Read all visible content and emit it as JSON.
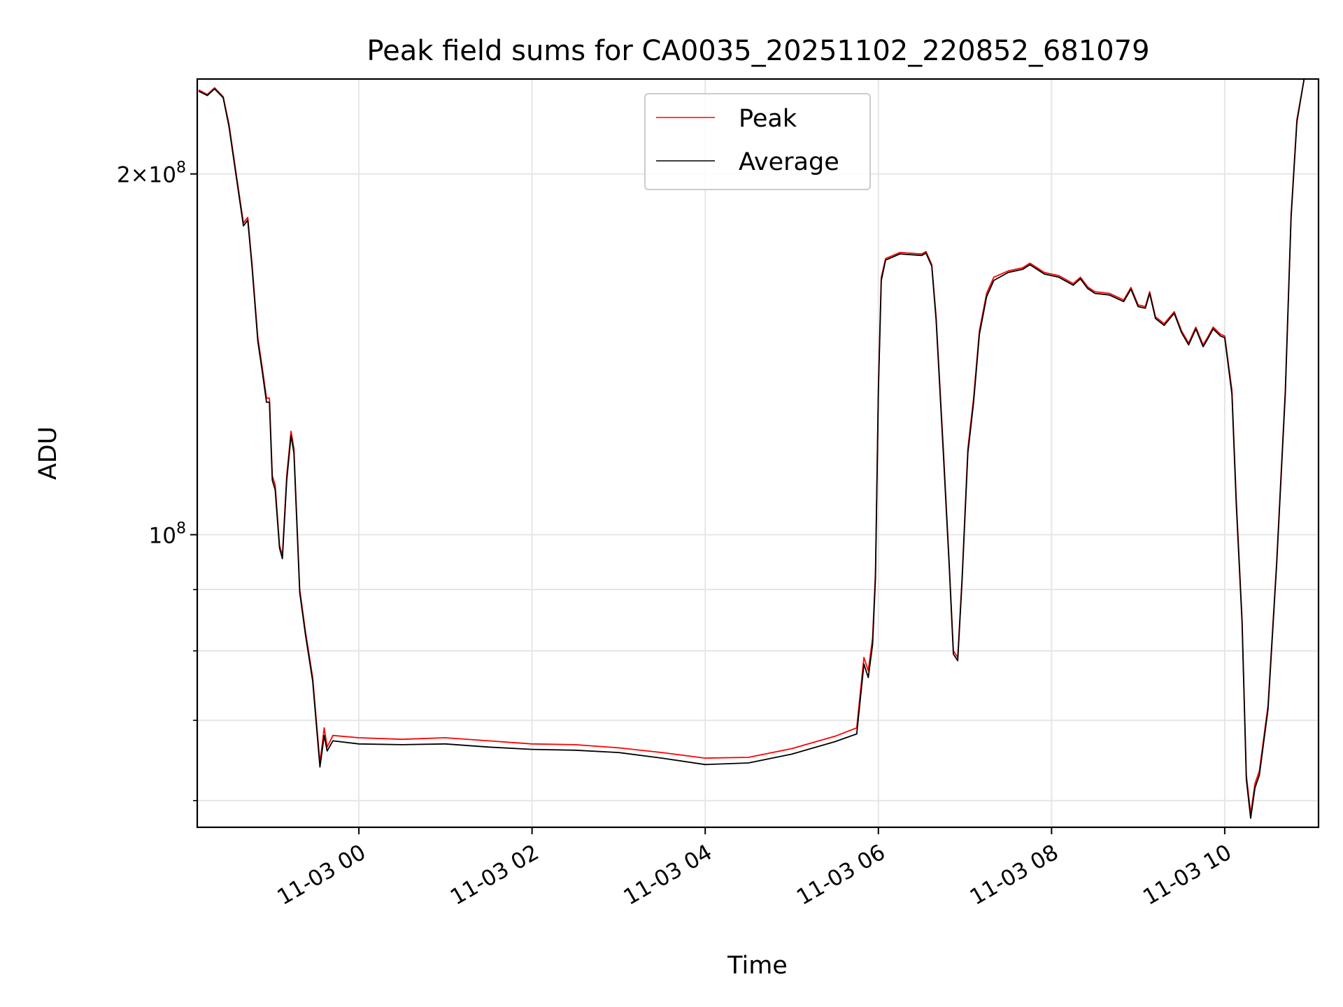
{
  "chart_data": {
    "type": "line",
    "title": "Peak field sums for CA0035_20251102_220852_681079",
    "xlabel": "Time",
    "ylabel": "ADU",
    "yscale": "log",
    "grid": true,
    "legend_position": "top-center",
    "xlim": [
      "2025-11-02 22:08",
      "2025-11-03 11:05"
    ],
    "ylim": [
      57000000,
      240000000
    ],
    "x_ticks": [
      {
        "t": "2025-11-03 00:00",
        "label": "11-03 00"
      },
      {
        "t": "2025-11-03 02:00",
        "label": "11-03 02"
      },
      {
        "t": "2025-11-03 04:00",
        "label": "11-03 04"
      },
      {
        "t": "2025-11-03 06:00",
        "label": "11-03 06"
      },
      {
        "t": "2025-11-03 08:00",
        "label": "11-03 08"
      },
      {
        "t": "2025-11-03 10:00",
        "label": "11-03 10"
      }
    ],
    "y_major_ticks": [
      {
        "value": 100000000,
        "base": "10",
        "exp": "8",
        "mult": ""
      },
      {
        "value": 200000000,
        "base": "10",
        "exp": "8",
        "mult": "2×"
      }
    ],
    "y_minor_ticks": [
      60000000,
      70000000,
      80000000,
      90000000
    ],
    "series": [
      {
        "name": "Peak",
        "color": "#ff0000",
        "points": [
          [
            "2025-11-02 22:09",
            235000000
          ],
          [
            "2025-11-02 22:15",
            233000000
          ],
          [
            "2025-11-02 22:20",
            236000000
          ],
          [
            "2025-11-02 22:26",
            232000000
          ],
          [
            "2025-11-02 22:30",
            220000000
          ],
          [
            "2025-11-02 22:35",
            200000000
          ],
          [
            "2025-11-02 22:40",
            182000000
          ],
          [
            "2025-11-02 22:43",
            184000000
          ],
          [
            "2025-11-02 22:46",
            168000000
          ],
          [
            "2025-11-02 22:50",
            146000000
          ],
          [
            "2025-11-02 22:53",
            138000000
          ],
          [
            "2025-11-02 22:56",
            130000000
          ],
          [
            "2025-11-02 22:58",
            130000000
          ],
          [
            "2025-11-02 23:00",
            112000000
          ],
          [
            "2025-11-02 23:02",
            110000000
          ],
          [
            "2025-11-02 23:05",
            98000000
          ],
          [
            "2025-11-02 23:07",
            96000000
          ],
          [
            "2025-11-02 23:10",
            112000000
          ],
          [
            "2025-11-02 23:13",
            122000000
          ],
          [
            "2025-11-02 23:15",
            118000000
          ],
          [
            "2025-11-02 23:19",
            90000000
          ],
          [
            "2025-11-02 23:23",
            83000000
          ],
          [
            "2025-11-02 23:28",
            76000000
          ],
          [
            "2025-11-02 23:33",
            64500000
          ],
          [
            "2025-11-02 23:36",
            69000000
          ],
          [
            "2025-11-02 23:38",
            66500000
          ],
          [
            "2025-11-02 23:42",
            68000000
          ],
          [
            "2025-11-03 00:00",
            67700000
          ],
          [
            "2025-11-03 00:30",
            67500000
          ],
          [
            "2025-11-03 01:00",
            67700000
          ],
          [
            "2025-11-03 01:30",
            67300000
          ],
          [
            "2025-11-03 02:00",
            66900000
          ],
          [
            "2025-11-03 02:30",
            66800000
          ],
          [
            "2025-11-03 03:00",
            66400000
          ],
          [
            "2025-11-03 03:30",
            65800000
          ],
          [
            "2025-11-03 04:00",
            65100000
          ],
          [
            "2025-11-03 04:30",
            65200000
          ],
          [
            "2025-11-03 05:00",
            66300000
          ],
          [
            "2025-11-03 05:30",
            67900000
          ],
          [
            "2025-11-03 05:45",
            69000000
          ],
          [
            "2025-11-03 05:50",
            79000000
          ],
          [
            "2025-11-03 05:53",
            77000000
          ],
          [
            "2025-11-03 05:56",
            82000000
          ],
          [
            "2025-11-03 05:58",
            93000000
          ],
          [
            "2025-11-03 06:00",
            133000000
          ],
          [
            "2025-11-03 06:02",
            164000000
          ],
          [
            "2025-11-03 06:05",
            170000000
          ],
          [
            "2025-11-03 06:15",
            172000000
          ],
          [
            "2025-11-03 06:30",
            171500000
          ],
          [
            "2025-11-03 06:33",
            172300000
          ],
          [
            "2025-11-03 06:37",
            168000000
          ],
          [
            "2025-11-03 06:40",
            152000000
          ],
          [
            "2025-11-03 06:45",
            118000000
          ],
          [
            "2025-11-03 06:49",
            95000000
          ],
          [
            "2025-11-03 06:52",
            80000000
          ],
          [
            "2025-11-03 06:55",
            79000000
          ],
          [
            "2025-11-03 06:58",
            92000000
          ],
          [
            "2025-11-03 07:02",
            118000000
          ],
          [
            "2025-11-03 07:06",
            130000000
          ],
          [
            "2025-11-03 07:10",
            148000000
          ],
          [
            "2025-11-03 07:15",
            159000000
          ],
          [
            "2025-11-03 07:20",
            164000000
          ],
          [
            "2025-11-03 07:30",
            166000000
          ],
          [
            "2025-11-03 07:40",
            167000000
          ],
          [
            "2025-11-03 07:45",
            168500000
          ],
          [
            "2025-11-03 07:55",
            165500000
          ],
          [
            "2025-11-03 08:05",
            164500000
          ],
          [
            "2025-11-03 08:15",
            162000000
          ],
          [
            "2025-11-03 08:20",
            164000000
          ],
          [
            "2025-11-03 08:25",
            161000000
          ],
          [
            "2025-11-03 08:30",
            159500000
          ],
          [
            "2025-11-03 08:40",
            159000000
          ],
          [
            "2025-11-03 08:50",
            157000000
          ],
          [
            "2025-11-03 08:55",
            160800000
          ],
          [
            "2025-11-03 09:00",
            155500000
          ],
          [
            "2025-11-03 09:05",
            155000000
          ],
          [
            "2025-11-03 09:08",
            159500000
          ],
          [
            "2025-11-03 09:12",
            152000000
          ],
          [
            "2025-11-03 09:18",
            150000000
          ],
          [
            "2025-11-03 09:25",
            153500000
          ],
          [
            "2025-11-03 09:30",
            148000000
          ],
          [
            "2025-11-03 09:35",
            144500000
          ],
          [
            "2025-11-03 09:40",
            149000000
          ],
          [
            "2025-11-03 09:45",
            144000000
          ],
          [
            "2025-11-03 09:48",
            146000000
          ],
          [
            "2025-11-03 09:52",
            149000000
          ],
          [
            "2025-11-03 09:57",
            147000000
          ],
          [
            "2025-11-03 10:00",
            146500000
          ],
          [
            "2025-11-03 10:05",
            132000000
          ],
          [
            "2025-11-03 10:08",
            107000000
          ],
          [
            "2025-11-03 10:12",
            85000000
          ],
          [
            "2025-11-03 10:15",
            63000000
          ],
          [
            "2025-11-03 10:18",
            58500000
          ],
          [
            "2025-11-03 10:21",
            62000000
          ],
          [
            "2025-11-03 10:24",
            63500000
          ],
          [
            "2025-11-03 10:30",
            72000000
          ],
          [
            "2025-11-03 10:36",
            95000000
          ],
          [
            "2025-11-03 10:42",
            132000000
          ],
          [
            "2025-11-03 10:46",
            185000000
          ],
          [
            "2025-11-03 10:50",
            222000000
          ],
          [
            "2025-11-03 10:55",
            240000000
          ],
          [
            "2025-11-03 11:05",
            240000000
          ]
        ]
      },
      {
        "name": "Average",
        "color": "#000000",
        "points": [
          [
            "2025-11-02 22:09",
            234500000
          ],
          [
            "2025-11-02 22:15",
            232500000
          ],
          [
            "2025-11-02 22:20",
            235500000
          ],
          [
            "2025-11-02 22:26",
            231500000
          ],
          [
            "2025-11-02 22:30",
            219000000
          ],
          [
            "2025-11-02 22:35",
            199000000
          ],
          [
            "2025-11-02 22:40",
            181000000
          ],
          [
            "2025-11-02 22:43",
            183000000
          ],
          [
            "2025-11-02 22:46",
            167000000
          ],
          [
            "2025-11-02 22:50",
            145000000
          ],
          [
            "2025-11-02 22:53",
            137000000
          ],
          [
            "2025-11-02 22:56",
            129000000
          ],
          [
            "2025-11-02 22:58",
            129000000
          ],
          [
            "2025-11-02 23:00",
            111000000
          ],
          [
            "2025-11-02 23:02",
            109000000
          ],
          [
            "2025-11-02 23:05",
            97500000
          ],
          [
            "2025-11-02 23:07",
            95500000
          ],
          [
            "2025-11-02 23:10",
            111000000
          ],
          [
            "2025-11-02 23:13",
            121000000
          ],
          [
            "2025-11-02 23:15",
            117000000
          ],
          [
            "2025-11-02 23:19",
            89500000
          ],
          [
            "2025-11-02 23:23",
            82500000
          ],
          [
            "2025-11-02 23:28",
            75500000
          ],
          [
            "2025-11-02 23:33",
            64000000
          ],
          [
            "2025-11-02 23:36",
            68000000
          ],
          [
            "2025-11-02 23:38",
            66000000
          ],
          [
            "2025-11-02 23:42",
            67300000
          ],
          [
            "2025-11-03 00:00",
            66900000
          ],
          [
            "2025-11-03 00:30",
            66800000
          ],
          [
            "2025-11-03 01:00",
            66900000
          ],
          [
            "2025-11-03 01:30",
            66500000
          ],
          [
            "2025-11-03 02:00",
            66200000
          ],
          [
            "2025-11-03 02:30",
            66100000
          ],
          [
            "2025-11-03 03:00",
            65800000
          ],
          [
            "2025-11-03 03:30",
            65100000
          ],
          [
            "2025-11-03 04:00",
            64300000
          ],
          [
            "2025-11-03 04:30",
            64500000
          ],
          [
            "2025-11-03 05:00",
            65600000
          ],
          [
            "2025-11-03 05:30",
            67200000
          ],
          [
            "2025-11-03 05:45",
            68200000
          ],
          [
            "2025-11-03 05:50",
            78000000
          ],
          [
            "2025-11-03 05:53",
            76000000
          ],
          [
            "2025-11-03 05:56",
            81000000
          ],
          [
            "2025-11-03 05:58",
            92000000
          ],
          [
            "2025-11-03 06:00",
            132000000
          ],
          [
            "2025-11-03 06:02",
            163000000
          ],
          [
            "2025-11-03 06:05",
            169500000
          ],
          [
            "2025-11-03 06:15",
            171500000
          ],
          [
            "2025-11-03 06:30",
            171000000
          ],
          [
            "2025-11-03 06:33",
            171800000
          ],
          [
            "2025-11-03 06:37",
            167500000
          ],
          [
            "2025-11-03 06:40",
            151000000
          ],
          [
            "2025-11-03 06:45",
            117000000
          ],
          [
            "2025-11-03 06:49",
            94500000
          ],
          [
            "2025-11-03 06:52",
            79500000
          ],
          [
            "2025-11-03 06:55",
            78500000
          ],
          [
            "2025-11-03 06:58",
            91500000
          ],
          [
            "2025-11-03 07:02",
            117000000
          ],
          [
            "2025-11-03 07:06",
            129000000
          ],
          [
            "2025-11-03 07:10",
            147000000
          ],
          [
            "2025-11-03 07:15",
            158000000
          ],
          [
            "2025-11-03 07:20",
            163000000
          ],
          [
            "2025-11-03 07:30",
            165500000
          ],
          [
            "2025-11-03 07:40",
            166500000
          ],
          [
            "2025-11-03 07:45",
            168000000
          ],
          [
            "2025-11-03 07:55",
            165000000
          ],
          [
            "2025-11-03 08:05",
            164000000
          ],
          [
            "2025-11-03 08:15",
            161500000
          ],
          [
            "2025-11-03 08:20",
            163500000
          ],
          [
            "2025-11-03 08:25",
            160500000
          ],
          [
            "2025-11-03 08:30",
            159000000
          ],
          [
            "2025-11-03 08:40",
            158500000
          ],
          [
            "2025-11-03 08:50",
            156500000
          ],
          [
            "2025-11-03 08:55",
            160300000
          ],
          [
            "2025-11-03 09:00",
            155000000
          ],
          [
            "2025-11-03 09:05",
            154500000
          ],
          [
            "2025-11-03 09:08",
            159000000
          ],
          [
            "2025-11-03 09:12",
            151500000
          ],
          [
            "2025-11-03 09:18",
            149500000
          ],
          [
            "2025-11-03 09:25",
            153000000
          ],
          [
            "2025-11-03 09:30",
            147500000
          ],
          [
            "2025-11-03 09:35",
            144000000
          ],
          [
            "2025-11-03 09:40",
            148500000
          ],
          [
            "2025-11-03 09:45",
            143500000
          ],
          [
            "2025-11-03 09:48",
            145500000
          ],
          [
            "2025-11-03 09:52",
            148500000
          ],
          [
            "2025-11-03 09:57",
            146500000
          ],
          [
            "2025-11-03 10:00",
            146000000
          ],
          [
            "2025-11-03 10:05",
            131000000
          ],
          [
            "2025-11-03 10:08",
            106000000
          ],
          [
            "2025-11-03 10:12",
            84500000
          ],
          [
            "2025-11-03 10:15",
            62500000
          ],
          [
            "2025-11-03 10:18",
            58000000
          ],
          [
            "2025-11-03 10:21",
            61500000
          ],
          [
            "2025-11-03 10:24",
            63000000
          ],
          [
            "2025-11-03 10:30",
            71500000
          ],
          [
            "2025-11-03 10:36",
            94500000
          ],
          [
            "2025-11-03 10:42",
            131000000
          ],
          [
            "2025-11-03 10:46",
            184000000
          ],
          [
            "2025-11-03 10:50",
            221000000
          ],
          [
            "2025-11-03 10:55",
            240000000
          ],
          [
            "2025-11-03 11:05",
            240000000
          ]
        ]
      }
    ]
  }
}
